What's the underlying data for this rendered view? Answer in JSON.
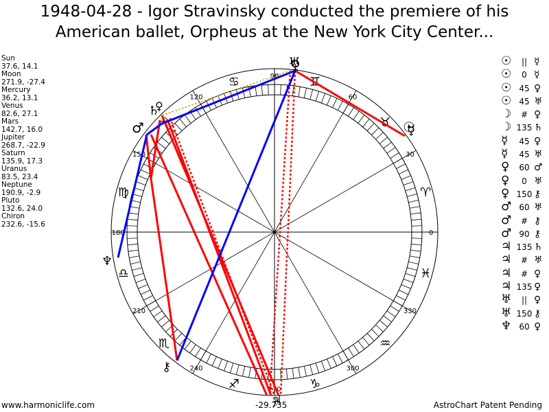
{
  "title": {
    "line1": "1948-04-28 - Igor Stravinsky conducted the premiere of his",
    "line2": "American ballet, Orpheus at the New York City Center..."
  },
  "planets": [
    {
      "name": "Sun",
      "coords": "37.6, 14.1"
    },
    {
      "name": "Moon",
      "coords": "271.9, -27.4"
    },
    {
      "name": "Mercury",
      "coords": "36.2, 13.1"
    },
    {
      "name": "Venus",
      "coords": "82.6, 27.1"
    },
    {
      "name": "Mars",
      "coords": "142.7, 16.0"
    },
    {
      "name": "Jupiter",
      "coords": "268.7, -22.9"
    },
    {
      "name": "Saturn",
      "coords": "135.9, 17.3"
    },
    {
      "name": "Uranus",
      "coords": "83.5, 23.4"
    },
    {
      "name": "Neptune",
      "coords": "190.9, -2.9"
    },
    {
      "name": "Pluto",
      "coords": "132.6, 24.0"
    },
    {
      "name": "Chiron",
      "coords": "232.6, -15.6"
    }
  ],
  "aspects": [
    {
      "p1": "☉",
      "op": "||",
      "p2": "☿"
    },
    {
      "p1": "☉",
      "op": "0",
      "p2": "☿"
    },
    {
      "p1": "☉",
      "op": "45",
      "p2": "♀"
    },
    {
      "p1": "☉",
      "op": "45",
      "p2": "♅"
    },
    {
      "p1": "☽",
      "op": "#",
      "p2": "♀"
    },
    {
      "p1": "☽",
      "op": "135",
      "p2": "♄"
    },
    {
      "p1": "☿",
      "op": "45",
      "p2": "♀"
    },
    {
      "p1": "☿",
      "op": "45",
      "p2": "♅"
    },
    {
      "p1": "♀",
      "op": "60",
      "p2": "♂"
    },
    {
      "p1": "♀",
      "op": "0",
      "p2": "♅"
    },
    {
      "p1": "♀",
      "op": "150",
      "p2": "⚷"
    },
    {
      "p1": "♂",
      "op": "60",
      "p2": "♅"
    },
    {
      "p1": "♂",
      "op": "#",
      "p2": "⚷"
    },
    {
      "p1": "♂",
      "op": "90",
      "p2": "⚷"
    },
    {
      "p1": "♃",
      "op": "135",
      "p2": "♄"
    },
    {
      "p1": "♃",
      "op": "#",
      "p2": "♅"
    },
    {
      "p1": "♃",
      "op": "#",
      "p2": "♀"
    },
    {
      "p1": "♃",
      "op": "135",
      "p2": "♀"
    },
    {
      "p1": "♅",
      "op": "||",
      "p2": "♀"
    },
    {
      "p1": "♅",
      "op": "150",
      "p2": "⚷"
    },
    {
      "p1": "♆",
      "op": "60",
      "p2": "♀"
    }
  ],
  "wheel": {
    "degree_labels": [
      "0",
      "30",
      "60",
      "90",
      "120",
      "150",
      "180",
      "210",
      "240",
      "270",
      "300",
      "330"
    ],
    "signs": [
      "♈",
      "♉",
      "♊",
      "♋",
      "♌",
      "♍",
      "♎",
      "♏",
      "♐",
      "♑",
      "♒",
      "♓"
    ],
    "bottom_label": "-29.735"
  },
  "colors": {
    "red": "#ff0000",
    "blue": "#0000ff",
    "gold": "#c8a000"
  },
  "footer": {
    "left": "www.harmoniclife.com",
    "right": "AstroChart Patent Pending"
  }
}
